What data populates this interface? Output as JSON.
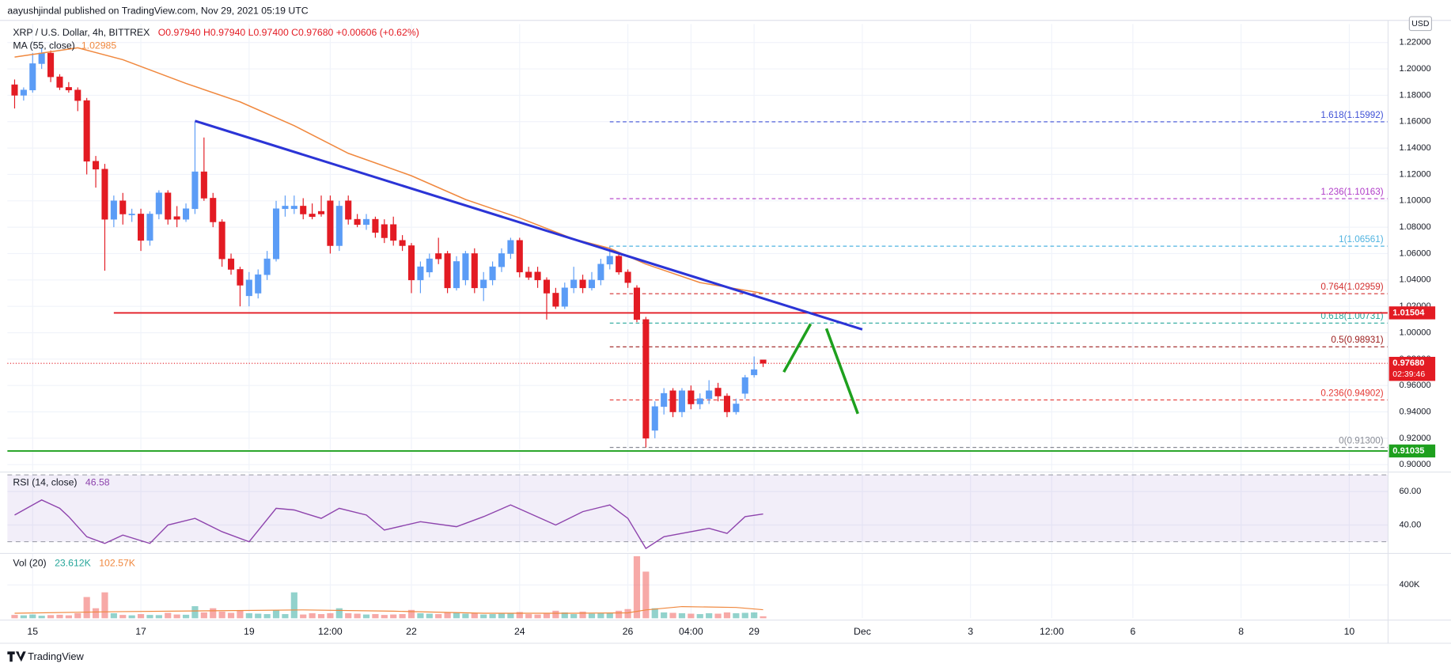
{
  "header": {
    "published": "aayushjindal published on TradingView.com, Nov 29, 2021 05:19 UTC"
  },
  "footer": {
    "brand": "TradingView"
  },
  "chart_data": [
    {
      "type": "candlestick",
      "title": "XRP / U.S. Dollar, 4h, BITTREX",
      "ohlc_legend": "O0.97940 H0.97940 L0.97400 C0.97680 +0.00606 (+0.62%)",
      "currency": "USD",
      "up_color": "#5b9cf6",
      "down_color": "#e31b23",
      "grid": true,
      "xlim": [
        -2.8,
        150.3
      ],
      "ylim": [
        0.8958,
        1.2326
      ],
      "xticks": [
        {
          "value": 0,
          "label": "15"
        },
        {
          "value": 12,
          "label": "17"
        },
        {
          "value": 24,
          "label": "19"
        },
        {
          "value": 33,
          "label": "12:00"
        },
        {
          "value": 42,
          "label": "22"
        },
        {
          "value": 54,
          "label": "24"
        },
        {
          "value": 66,
          "label": "26"
        },
        {
          "value": 73,
          "label": "04:00"
        },
        {
          "value": 80,
          "label": "29"
        },
        {
          "value": 92,
          "label": "Dec"
        },
        {
          "value": 104,
          "label": "3"
        },
        {
          "value": 113,
          "label": "12:00"
        },
        {
          "value": 122,
          "label": "6"
        },
        {
          "value": 134,
          "label": "8"
        },
        {
          "value": 146,
          "label": "10"
        }
      ],
      "yticks": [
        {
          "value": 0.9,
          "label": "0.90000"
        },
        {
          "value": 0.92,
          "label": "0.92000"
        },
        {
          "value": 0.94,
          "label": "0.94000"
        },
        {
          "value": 0.96,
          "label": "0.96000"
        },
        {
          "value": 0.98,
          "label": "0.98000"
        },
        {
          "value": 1.0,
          "label": "1.00000"
        },
        {
          "value": 1.02,
          "label": "1.02000"
        },
        {
          "value": 1.04,
          "label": "1.04000"
        },
        {
          "value": 1.06,
          "label": "1.06000"
        },
        {
          "value": 1.08,
          "label": "1.08000"
        },
        {
          "value": 1.1,
          "label": "1.10000"
        },
        {
          "value": 1.12,
          "label": "1.12000"
        },
        {
          "value": 1.14,
          "label": "1.14000"
        },
        {
          "value": 1.16,
          "label": "1.16000"
        },
        {
          "value": 1.18,
          "label": "1.18000"
        },
        {
          "value": 1.2,
          "label": "1.20000"
        },
        {
          "value": 1.22,
          "label": "1.22000"
        }
      ],
      "x": [
        -2,
        -1,
        0,
        1,
        2,
        3,
        4,
        5,
        6,
        7,
        8,
        9,
        10,
        11,
        12,
        13,
        14,
        15,
        16,
        17,
        18,
        19,
        20,
        21,
        22,
        23,
        24,
        25,
        26,
        27,
        28,
        29,
        30,
        31,
        32,
        33,
        34,
        35,
        36,
        37,
        38,
        39,
        40,
        41,
        42,
        43,
        44,
        45,
        46,
        47,
        48,
        49,
        50,
        51,
        52,
        53,
        54,
        55,
        56,
        57,
        58,
        59,
        60,
        61,
        62,
        63,
        64,
        65,
        66,
        67,
        68,
        69,
        70,
        71,
        72,
        73,
        74,
        75,
        76,
        77,
        78,
        79,
        80,
        81
      ],
      "open": [
        1.188,
        1.18,
        1.184,
        1.204,
        1.212,
        1.194,
        1.186,
        1.184,
        1.176,
        1.13,
        1.124,
        1.086,
        1.1,
        1.09,
        1.09,
        1.07,
        1.09,
        1.106,
        1.088,
        1.086,
        1.094,
        1.122,
        1.102,
        1.084,
        1.056,
        1.048,
        1.028,
        1.03,
        1.044,
        1.056,
        1.094,
        1.094,
        1.096,
        1.09,
        1.092,
        1.1,
        1.066,
        1.1,
        1.086,
        1.082,
        1.086,
        1.082,
        1.082,
        1.07,
        1.066,
        1.04,
        1.046,
        1.06,
        1.06,
        1.034,
        1.04,
        1.06,
        1.034,
        1.04,
        1.05,
        1.06,
        1.07,
        1.046,
        1.046,
        1.04,
        1.03,
        1.02,
        1.034,
        1.04,
        1.034,
        1.04,
        1.052,
        1.058,
        1.046,
        1.034,
        1.01,
        0.926,
        0.944,
        0.956,
        0.94,
        0.956,
        0.946,
        0.95,
        0.958,
        0.952,
        0.94,
        0.954,
        0.968,
        0.9794
      ],
      "high": [
        1.192,
        1.186,
        1.212,
        1.216,
        1.214,
        1.196,
        1.19,
        1.186,
        1.178,
        1.134,
        1.128,
        1.104,
        1.106,
        1.094,
        1.094,
        1.092,
        1.108,
        1.108,
        1.096,
        1.098,
        1.16,
        1.148,
        1.106,
        1.086,
        1.06,
        1.05,
        1.046,
        1.048,
        1.062,
        1.1,
        1.104,
        1.104,
        1.102,
        1.098,
        1.104,
        1.104,
        1.1,
        1.104,
        1.09,
        1.09,
        1.088,
        1.086,
        1.088,
        1.074,
        1.068,
        1.054,
        1.06,
        1.072,
        1.062,
        1.058,
        1.062,
        1.064,
        1.046,
        1.054,
        1.064,
        1.072,
        1.072,
        1.05,
        1.05,
        1.042,
        1.034,
        1.038,
        1.05,
        1.044,
        1.046,
        1.056,
        1.066,
        1.06,
        1.048,
        1.036,
        1.012,
        0.948,
        0.958,
        0.958,
        0.958,
        0.96,
        0.954,
        0.964,
        0.962,
        0.954,
        0.95,
        0.968,
        0.982,
        0.9794
      ],
      "low": [
        1.17,
        1.176,
        1.182,
        1.2,
        1.19,
        1.184,
        1.182,
        1.168,
        1.12,
        1.11,
        1.047,
        1.08,
        1.082,
        1.084,
        1.062,
        1.066,
        1.086,
        1.082,
        1.08,
        1.084,
        1.09,
        1.1,
        1.08,
        1.05,
        1.044,
        1.02,
        1.02,
        1.026,
        1.04,
        1.054,
        1.088,
        1.09,
        1.086,
        1.086,
        1.088,
        1.06,
        1.062,
        1.082,
        1.08,
        1.078,
        1.072,
        1.068,
        1.066,
        1.062,
        1.03,
        1.03,
        1.042,
        1.052,
        1.03,
        1.032,
        1.036,
        1.03,
        1.024,
        1.036,
        1.046,
        1.056,
        1.042,
        1.04,
        1.034,
        1.01,
        1.018,
        1.018,
        1.03,
        1.03,
        1.032,
        1.036,
        1.048,
        1.044,
        1.034,
        1.008,
        0.913,
        0.92,
        0.938,
        0.936,
        0.936,
        0.942,
        0.942,
        0.946,
        0.948,
        0.936,
        0.938,
        0.95,
        0.966,
        0.974
      ],
      "close": [
        1.18,
        1.184,
        1.204,
        1.212,
        1.194,
        1.186,
        1.184,
        1.176,
        1.13,
        1.124,
        1.086,
        1.1,
        1.09,
        1.09,
        1.07,
        1.09,
        1.106,
        1.086,
        1.086,
        1.094,
        1.122,
        1.102,
        1.084,
        1.056,
        1.048,
        1.036,
        1.04,
        1.044,
        1.056,
        1.094,
        1.096,
        1.096,
        1.09,
        1.088,
        1.09,
        1.066,
        1.096,
        1.086,
        1.082,
        1.086,
        1.076,
        1.072,
        1.07,
        1.066,
        1.04,
        1.05,
        1.056,
        1.056,
        1.034,
        1.054,
        1.06,
        1.034,
        1.04,
        1.05,
        1.06,
        1.07,
        1.046,
        1.042,
        1.04,
        1.03,
        1.02,
        1.034,
        1.04,
        1.034,
        1.04,
        1.052,
        1.058,
        1.046,
        1.038,
        1.01,
        0.92,
        0.944,
        0.954,
        0.94,
        0.956,
        0.946,
        0.95,
        0.956,
        0.952,
        0.94,
        0.946,
        0.966,
        0.972,
        0.9768
      ],
      "ma": {
        "name": "MA (55, close)",
        "last_label": "1.02985",
        "color": "#f0883e",
        "x": [
          -2,
          5,
          10,
          17,
          23,
          29,
          35,
          42,
          48,
          54,
          60,
          64,
          68,
          74,
          81
        ],
        "values": [
          1.209,
          1.216,
          1.207,
          1.189,
          1.175,
          1.157,
          1.136,
          1.119,
          1.101,
          1.087,
          1.071,
          1.064,
          1.052,
          1.038,
          1.02985
        ]
      },
      "trendline": {
        "color": "#2b34d6",
        "x": [
          18,
          92
        ],
        "values": [
          1.1606,
          1.0025
        ]
      },
      "lines": [
        {
          "value": 1.01504,
          "label": "1.01504",
          "color": "#e31b23",
          "x_start": 9
        },
        {
          "value": 0.91035,
          "label": "0.91035",
          "color": "#1ea01e",
          "x_start": -2.8
        }
      ],
      "fib": {
        "x_start": 64,
        "levels": [
          {
            "label": "1.618(1.15992)",
            "value": 1.15992,
            "color": "#3f51d6"
          },
          {
            "label": "1.236(1.10163)",
            "value": 1.10163,
            "color": "#b03cc8"
          },
          {
            "label": "1(1.06561)",
            "value": 1.06561,
            "color": "#4fb3e0"
          },
          {
            "label": "0.764(1.02959)",
            "value": 1.02959,
            "color": "#d32f2f"
          },
          {
            "label": "0.618(1.00731)",
            "value": 1.00731,
            "color": "#26a69a"
          },
          {
            "label": "0.5(0.98931)",
            "value": 0.98931,
            "color": "#9c1c1c"
          },
          {
            "label": "0.236(0.94902)",
            "value": 0.94902,
            "color": "#e53935"
          },
          {
            "label": "0(0.91300)",
            "value": 0.913,
            "color": "#8a8d96"
          }
        ]
      },
      "current": {
        "value": 0.9768,
        "label": "0.97680",
        "countdown": "02:39:46",
        "color": "#e31b23"
      }
    },
    {
      "type": "line",
      "name": "RSI (14, close)",
      "last_label": "46.58",
      "color": "#8e44ad",
      "band": [
        30,
        70
      ],
      "band_color": "#7e57c2",
      "ylim": [
        24.1,
        70.6
      ],
      "yticks": [
        {
          "value": 40,
          "label": "40.00"
        },
        {
          "value": 60,
          "label": "60.00"
        }
      ],
      "x": [
        -2,
        1,
        3,
        4,
        6,
        8,
        10,
        13,
        15,
        18,
        21,
        24,
        27,
        29,
        32,
        34,
        37,
        39,
        43,
        47,
        50,
        53,
        58,
        61,
        64,
        66,
        68,
        70,
        72,
        75,
        77,
        79,
        81
      ],
      "values": [
        46,
        55,
        50,
        45,
        33,
        29,
        34,
        29,
        40,
        44,
        36,
        30,
        50,
        49,
        44,
        50,
        46,
        37,
        42,
        39,
        45,
        52,
        40,
        48,
        52,
        44,
        26,
        33,
        35,
        38,
        35,
        45,
        46.58
      ]
    },
    {
      "type": "bar",
      "name": "Vol (20)",
      "last_label": "23.612K",
      "up_color": "#26a69a",
      "down_color": "#ef5350",
      "ylim": [
        0,
        756000
      ],
      "yticks": [
        {
          "value": 400000,
          "label": "400K"
        }
      ],
      "values": [
        40000,
        35000,
        45000,
        30000,
        38000,
        42000,
        35000,
        60000,
        255000,
        120000,
        311000,
        60000,
        40000,
        35000,
        50000,
        40000,
        38000,
        65000,
        45000,
        42000,
        145000,
        70000,
        120000,
        80000,
        65000,
        90000,
        60000,
        55000,
        50000,
        95000,
        50000,
        311000,
        45000,
        60000,
        50000,
        60000,
        120000,
        60000,
        55000,
        45000,
        50000,
        40000,
        45000,
        50000,
        100000,
        60000,
        55000,
        50000,
        70000,
        65000,
        55000,
        60000,
        45000,
        50000,
        55000,
        60000,
        75000,
        50000,
        45000,
        55000,
        90000,
        70000,
        50000,
        80000,
        55000,
        60000,
        65000,
        90000,
        110000,
        745000,
        560000,
        120000,
        70000,
        65000,
        60000,
        55000,
        50000,
        60000,
        55000,
        70000,
        60000,
        65000,
        70000,
        23612
      ],
      "ma": {
        "last_label": "102.57K",
        "color": "#f0883e",
        "x": [
          -2,
          10,
          20,
          30,
          40,
          50,
          60,
          66,
          68,
          72,
          78,
          81
        ],
        "values": [
          60000,
          80000,
          90000,
          100000,
          85000,
          60000,
          60000,
          65000,
          100000,
          140000,
          130000,
          102570
        ]
      }
    }
  ]
}
